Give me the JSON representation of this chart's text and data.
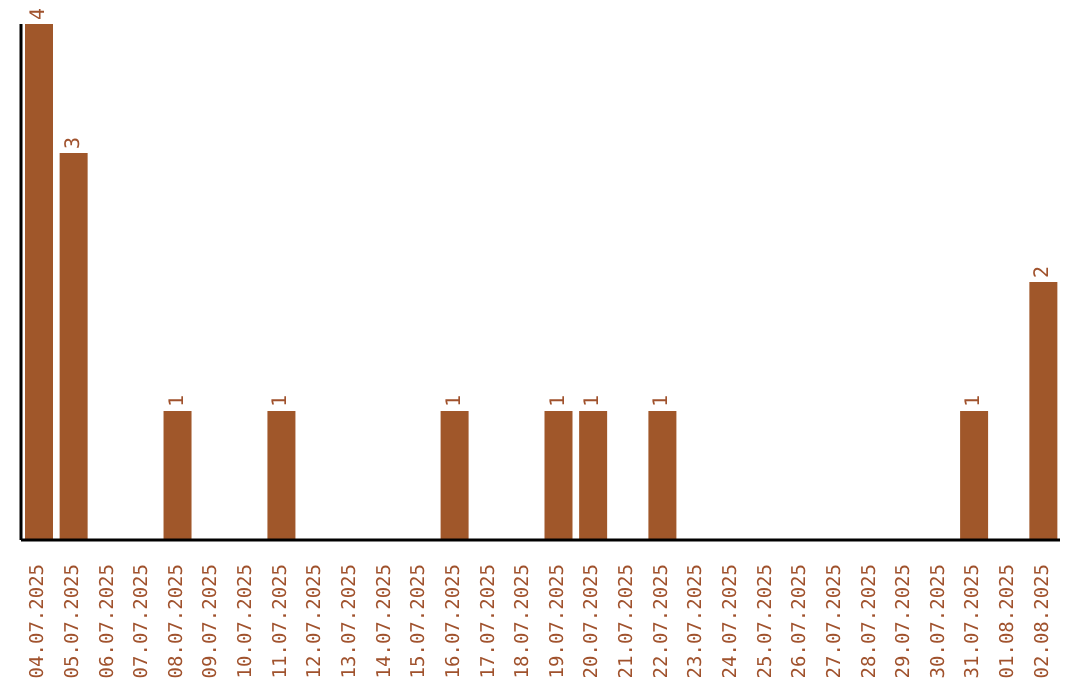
{
  "chart_data": {
    "type": "bar",
    "categories": [
      "04.07.2025",
      "05.07.2025",
      "06.07.2025",
      "07.07.2025",
      "08.07.2025",
      "09.07.2025",
      "10.07.2025",
      "11.07.2025",
      "12.07.2025",
      "13.07.2025",
      "14.07.2025",
      "15.07.2025",
      "16.07.2025",
      "17.07.2025",
      "18.07.2025",
      "19.07.2025",
      "20.07.2025",
      "21.07.2025",
      "22.07.2025",
      "23.07.2025",
      "24.07.2025",
      "25.07.2025",
      "26.07.2025",
      "27.07.2025",
      "28.07.2025",
      "29.07.2025",
      "30.07.2025",
      "31.07.2025",
      "01.08.2025",
      "02.08.2025"
    ],
    "values": [
      4,
      3,
      0,
      0,
      1,
      0,
      0,
      1,
      0,
      0,
      0,
      0,
      1,
      0,
      0,
      1,
      1,
      0,
      1,
      0,
      0,
      0,
      0,
      0,
      0,
      0,
      0,
      1,
      0,
      2
    ],
    "value_labels": [
      "4",
      "3",
      null,
      null,
      "1",
      null,
      null,
      "1",
      null,
      null,
      null,
      null,
      "1",
      null,
      null,
      "1",
      "1",
      null,
      "1",
      null,
      null,
      null,
      null,
      null,
      null,
      null,
      null,
      "1",
      null,
      "2"
    ],
    "color": "#a0572a",
    "grid": false,
    "legend": false
  }
}
